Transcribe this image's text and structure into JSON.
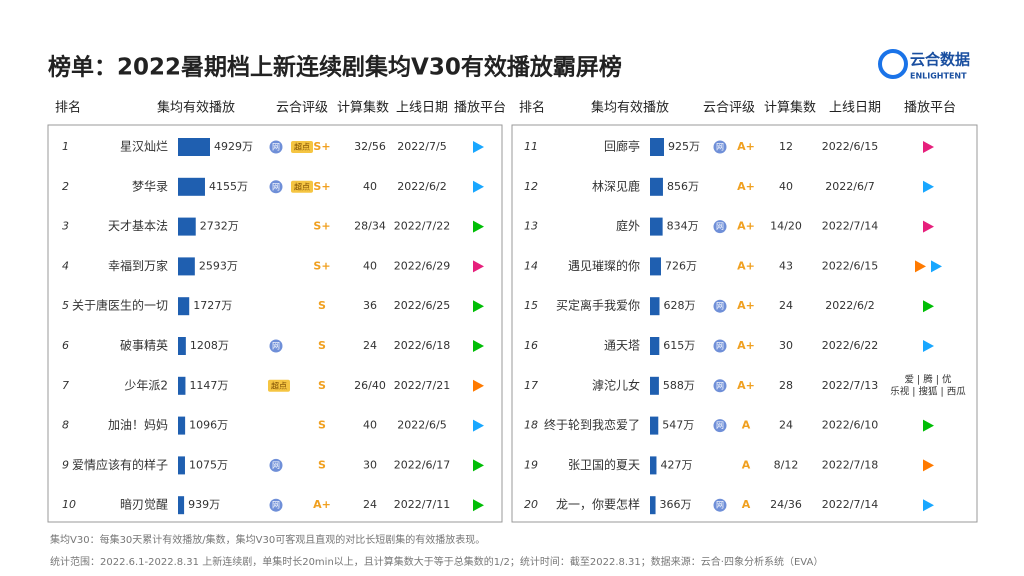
{
  "header": {
    "title": "榜单：2022暑期档上新连续剧集均V30有效播放霸屏榜",
    "logo_cn": "云合数据",
    "logo_en": "ENLIGHTENT"
  },
  "columns": [
    "排名",
    "集均有效播放",
    "云合评级",
    "计算集数",
    "上线日期",
    "播放平台"
  ],
  "tables": [
    {
      "rows": [
        {
          "rank": "1",
          "name": "星汉灿烂",
          "value": 4929,
          "value_label": "4929万",
          "badges": [
            "网",
            "超点"
          ],
          "grade": "S+",
          "episodes": "32/56",
          "date": "2022/7/5",
          "platforms": [
            "#19a7ff"
          ]
        },
        {
          "rank": "2",
          "name": "梦华录",
          "value": 4155,
          "value_label": "4155万",
          "badges": [
            "网",
            "超点"
          ],
          "grade": "S+",
          "episodes": "40",
          "date": "2022/6/2",
          "platforms": [
            "#19a7ff"
          ]
        },
        {
          "rank": "3",
          "name": "天才基本法",
          "value": 2732,
          "value_label": "2732万",
          "badges": [],
          "grade": "S+",
          "episodes": "28/34",
          "date": "2022/7/22",
          "platforms": [
            "#00be06"
          ]
        },
        {
          "rank": "4",
          "name": "幸福到万家",
          "value": 2593,
          "value_label": "2593万",
          "badges": [],
          "grade": "S+",
          "episodes": "40",
          "date": "2022/6/29",
          "platforms": [
            "#e6207c"
          ]
        },
        {
          "rank": "5",
          "name": "关于唐医生的一切",
          "value": 1727,
          "value_label": "1727万",
          "badges": [],
          "grade": "S",
          "episodes": "36",
          "date": "2022/6/25",
          "platforms": [
            "#00be06"
          ]
        },
        {
          "rank": "6",
          "name": "破事精英",
          "value": 1208,
          "value_label": "1208万",
          "badges": [
            "网"
          ],
          "grade": "S",
          "episodes": "24",
          "date": "2022/6/18",
          "platforms": [
            "#00be06"
          ]
        },
        {
          "rank": "7",
          "name": "少年派2",
          "value": 1147,
          "value_label": "1147万",
          "badges": [
            "超点"
          ],
          "grade": "S",
          "episodes": "26/40",
          "date": "2022/7/21",
          "platforms": [
            "#ff7a00"
          ]
        },
        {
          "rank": "8",
          "name": "加油！妈妈",
          "value": 1096,
          "value_label": "1096万",
          "badges": [],
          "grade": "S",
          "episodes": "40",
          "date": "2022/6/5",
          "platforms": [
            "#19a7ff"
          ]
        },
        {
          "rank": "9",
          "name": "爱情应该有的样子",
          "value": 1075,
          "value_label": "1075万",
          "badges": [
            "网"
          ],
          "grade": "S",
          "episodes": "30",
          "date": "2022/6/17",
          "platforms": [
            "#00be06"
          ]
        },
        {
          "rank": "10",
          "name": "暗刃觉醒",
          "value": 939,
          "value_label": "939万",
          "badges": [
            "网"
          ],
          "grade": "A+",
          "episodes": "24",
          "date": "2022/7/11",
          "platforms": [
            "#00be06"
          ]
        }
      ]
    },
    {
      "rows": [
        {
          "rank": "11",
          "name": "回廊亭",
          "value": 925,
          "value_label": "925万",
          "badges": [
            "网"
          ],
          "grade": "A+",
          "episodes": "12",
          "date": "2022/6/15",
          "platforms": [
            "#e6207c"
          ]
        },
        {
          "rank": "12",
          "name": "林深见鹿",
          "value": 856,
          "value_label": "856万",
          "badges": [],
          "grade": "A+",
          "episodes": "40",
          "date": "2022/6/7",
          "platforms": [
            "#19a7ff"
          ]
        },
        {
          "rank": "13",
          "name": "庭外",
          "value": 834,
          "value_label": "834万",
          "badges": [
            "网"
          ],
          "grade": "A+",
          "episodes": "14/20",
          "date": "2022/7/14",
          "platforms": [
            "#e6207c"
          ]
        },
        {
          "rank": "14",
          "name": "遇见璀璨的你",
          "value": 726,
          "value_label": "726万",
          "badges": [],
          "grade": "A+",
          "episodes": "43",
          "date": "2022/6/15",
          "platforms": [
            "#ff7a00",
            "#19a7ff"
          ]
        },
        {
          "rank": "15",
          "name": "买定离手我爱你",
          "value": 628,
          "value_label": "628万",
          "badges": [
            "网"
          ],
          "grade": "A+",
          "episodes": "24",
          "date": "2022/6/2",
          "platforms": [
            "#00be06"
          ]
        },
        {
          "rank": "16",
          "name": "通天塔",
          "value": 615,
          "value_label": "615万",
          "badges": [
            "网"
          ],
          "grade": "A+",
          "episodes": "30",
          "date": "2022/6/22",
          "platforms": [
            "#19a7ff"
          ]
        },
        {
          "rank": "17",
          "name": "滹沱儿女",
          "value": 588,
          "value_label": "588万",
          "badges": [
            "网"
          ],
          "grade": "A+",
          "episodes": "28",
          "date": "2022/7/13",
          "platforms": [],
          "platform_text": [
            "爱 | 腾 | 优",
            "乐视 | 搜狐 | 西瓜"
          ]
        },
        {
          "rank": "18",
          "name": "终于轮到我恋爱了",
          "value": 547,
          "value_label": "547万",
          "badges": [
            "网"
          ],
          "grade": "A",
          "episodes": "24",
          "date": "2022/6/10",
          "platforms": [
            "#00be06"
          ]
        },
        {
          "rank": "19",
          "name": "张卫国的夏天",
          "value": 427,
          "value_label": "427万",
          "badges": [],
          "grade": "A",
          "episodes": "8/12",
          "date": "2022/7/18",
          "platforms": [
            "#ff7a00"
          ]
        },
        {
          "rank": "20",
          "name": "龙一，你要怎样",
          "value": 366,
          "value_label": "366万",
          "badges": [
            "网"
          ],
          "grade": "A",
          "episodes": "24/36",
          "date": "2022/7/14",
          "platforms": [
            "#19a7ff"
          ]
        }
      ]
    }
  ],
  "footer": [
    "集均V30：每集30天累计有效播放/集数，集均V30可客观且直观的对比长短剧集的有效播放表现。",
    "统计范围：2022.6.1-2022.8.31 上新连续剧，单集时长20min以上，且计算集数大于等于总集数的1/2；统计时间：截至2022.8.31；数据来源：云合·四象分析系统（EVA）"
  ]
}
